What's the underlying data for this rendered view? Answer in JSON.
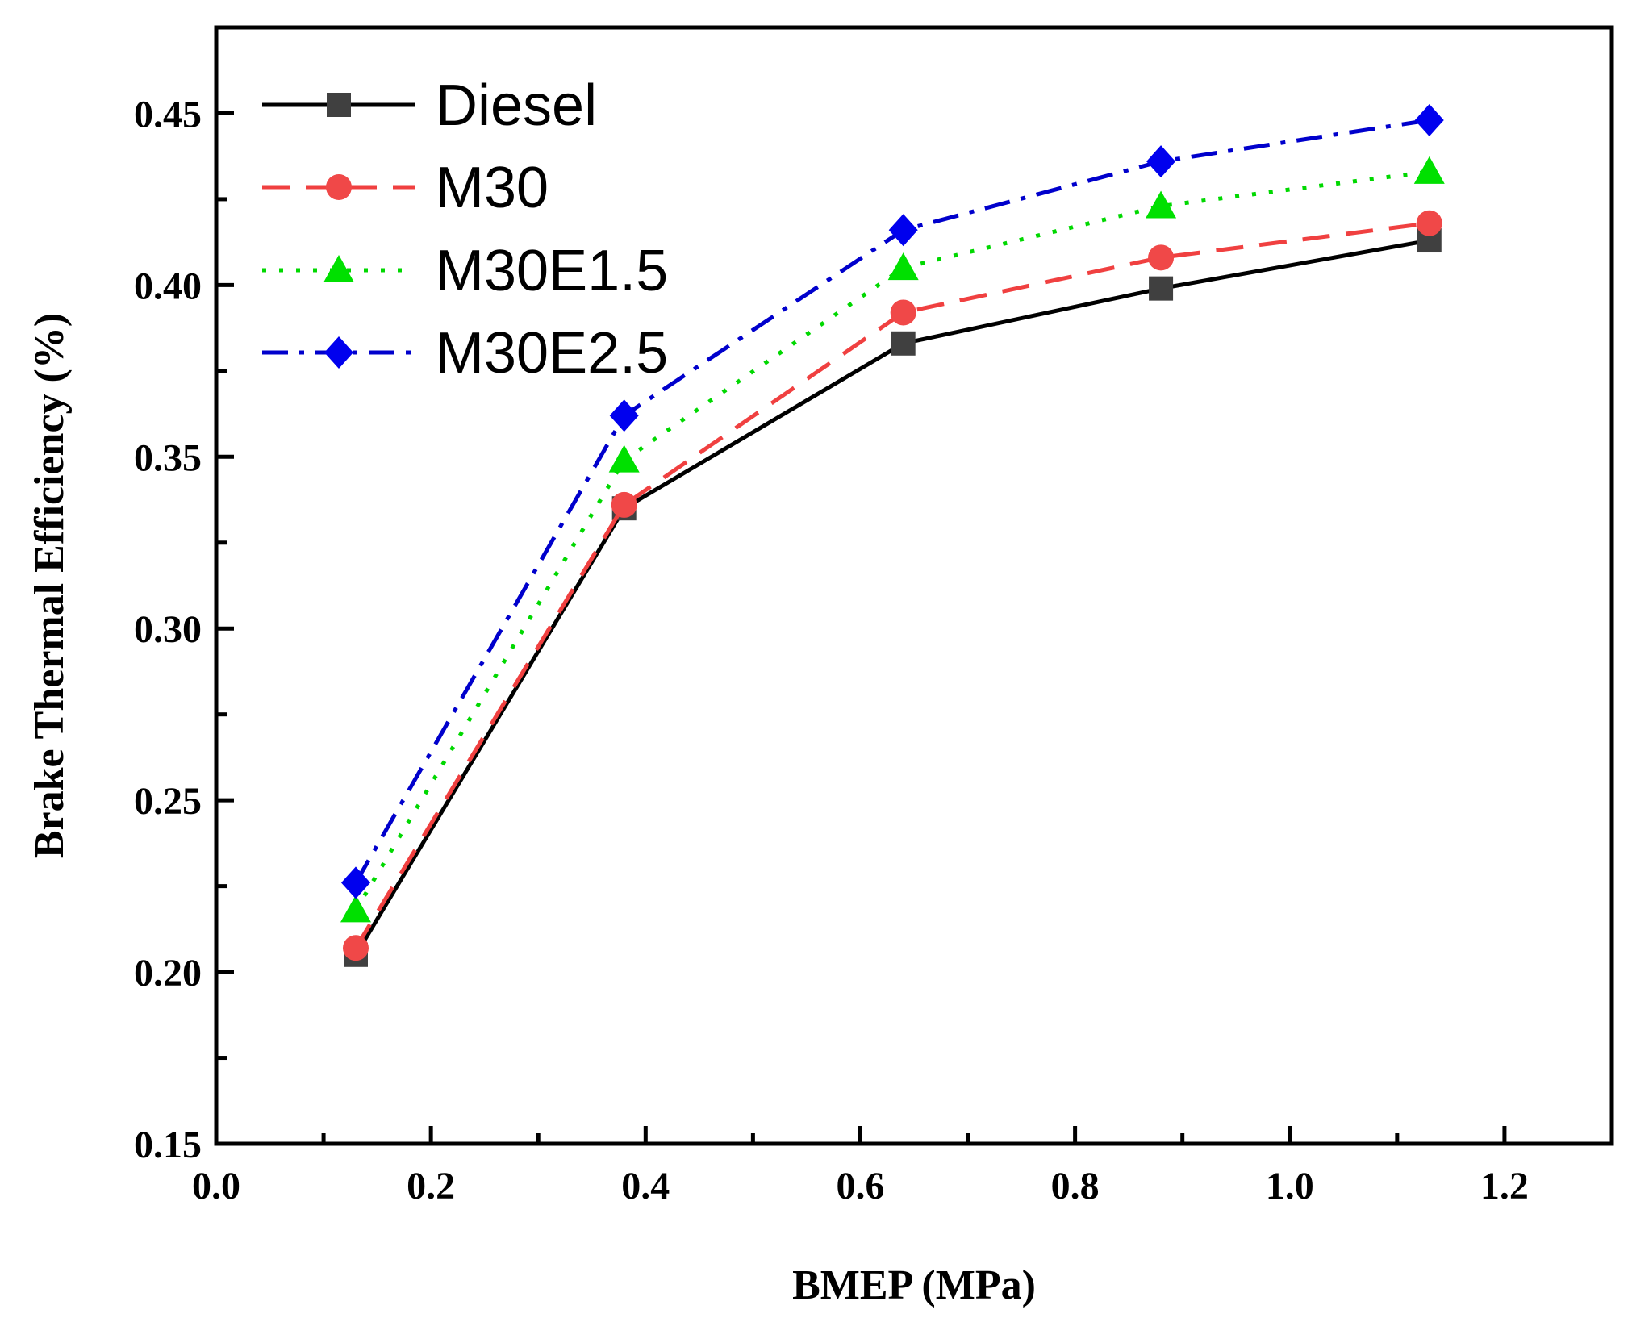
{
  "chart_data": {
    "type": "line",
    "title": "",
    "xlabel": "BMEP (MPa)",
    "ylabel": "Brake Thermal Efficiency (%)",
    "xlim": [
      0.0,
      1.3
    ],
    "ylim": [
      0.15,
      0.475
    ],
    "xticks": [
      "0.0",
      "0.2",
      "0.4",
      "0.6",
      "0.8",
      "1.0",
      "1.2"
    ],
    "yticks": [
      "0.15",
      "0.20",
      "0.25",
      "0.30",
      "0.35",
      "0.40",
      "0.45"
    ],
    "x": [
      0.13,
      0.38,
      0.64,
      0.88,
      1.13
    ],
    "legend_position": "top-left",
    "series": [
      {
        "name": "Diesel",
        "values": [
          0.205,
          0.335,
          0.383,
          0.399,
          0.413
        ],
        "color": "#000000",
        "marker": "square",
        "marker_color": "#404040",
        "dash": "none"
      },
      {
        "name": "M30",
        "values": [
          0.207,
          0.336,
          0.392,
          0.408,
          0.418
        ],
        "color": "#f04040",
        "marker": "circle",
        "marker_color": "#f04848",
        "dash": "dashed"
      },
      {
        "name": "M30E1.5",
        "values": [
          0.218,
          0.349,
          0.405,
          0.423,
          0.433
        ],
        "color": "#00d800",
        "marker": "triangle",
        "marker_color": "#00e000",
        "dash": "dotted"
      },
      {
        "name": "M30E2.5",
        "values": [
          0.226,
          0.362,
          0.416,
          0.436,
          0.448
        ],
        "color": "#0000cc",
        "marker": "diamond",
        "marker_color": "#0000ee",
        "dash": "dashdot"
      }
    ]
  }
}
